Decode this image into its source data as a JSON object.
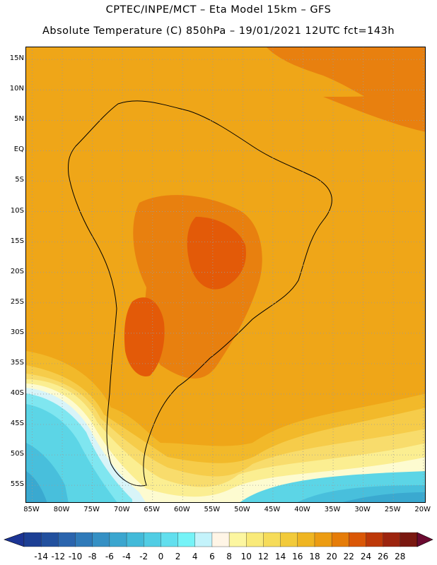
{
  "header": {
    "title_line1": "CPTEC/INPE/MCT –  Eta Model 15km – GFS",
    "title_line2": "Absolute Temperature (C) 850hPa – 19/01/2021 12UTC fct=143h"
  },
  "map": {
    "lat_labels": [
      "15N",
      "10N",
      "5N",
      "EQ",
      "5S",
      "10S",
      "15S",
      "20S",
      "25S",
      "30S",
      "35S",
      "40S",
      "45S",
      "50S",
      "55S"
    ],
    "lon_labels": [
      "85W",
      "80W",
      "75W",
      "70W",
      "65W",
      "60W",
      "55W",
      "50W",
      "45W",
      "40W",
      "35W",
      "30W",
      "25W",
      "20W"
    ],
    "lat_range": [
      17,
      -58
    ],
    "lon_range": [
      -86,
      -19.5
    ],
    "field_colors": {
      "t22": "#e35a08",
      "t20": "#e8800f",
      "t18": "#efa618",
      "t16": "#f2b92a",
      "t14": "#f6cc4a",
      "t12": "#f8dc6c",
      "t10": "#fbee91",
      "t8": "#fdfbd0",
      "t6": "#d8f4f8",
      "t4": "#7fe6f0",
      "t2": "#5cd5e6",
      "t0": "#48bfdc",
      "tm2": "#3aa9d0",
      "tm4": "#2f8fbe",
      "tm6": "#2878b0"
    },
    "coastline_color": "#000000",
    "grid_color": "#9a9a9a"
  },
  "legend": {
    "labels": [
      "-14",
      "-12",
      "-10",
      "-8",
      "-6",
      "-4",
      "-2",
      "0",
      "2",
      "4",
      "6",
      "8",
      "10",
      "12",
      "14",
      "16",
      "18",
      "20",
      "22",
      "24",
      "26",
      "28"
    ],
    "colors": [
      "#1c3f94",
      "#22509e",
      "#2a64ad",
      "#2f7ab9",
      "#3590c4",
      "#3ba6cf",
      "#43bad9",
      "#51cde4",
      "#62dfee",
      "#75f3f7",
      "#c4f3fb",
      "#fff5e6",
      "#fcf6a0",
      "#f9ea79",
      "#f6dc5a",
      "#f2ca3a",
      "#efb522",
      "#ec9c12",
      "#e57c08",
      "#da5706",
      "#bd3808",
      "#9c240e",
      "#7a1810"
    ],
    "out_low_color": "#1c3494",
    "out_high_color": "#6b0a30"
  }
}
